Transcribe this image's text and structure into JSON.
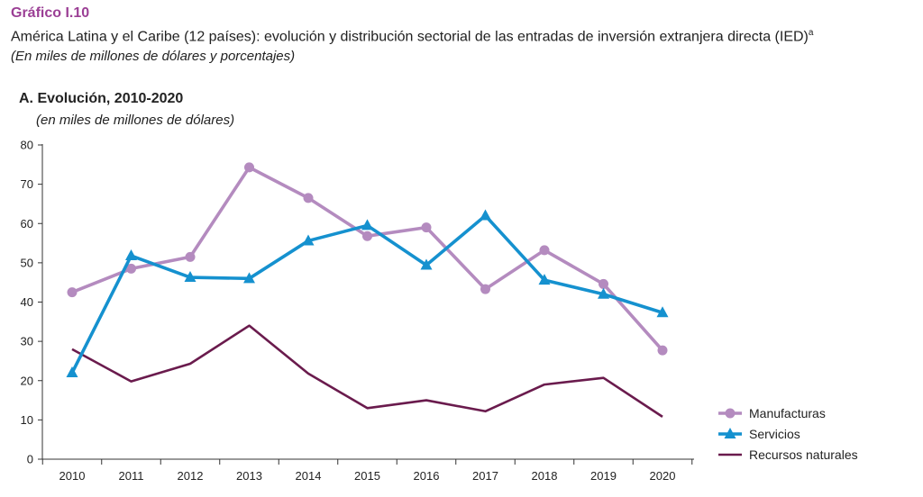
{
  "header": {
    "grafico_label": "Gráfico I.10",
    "subtitle": "América Latina y el Caribe (12 países): evolución y distribución sectorial de las entradas de inversión extranjera directa (IED)",
    "subtitle_sup": "a",
    "units": "(En miles de millones de dólares y porcentajes)"
  },
  "panel": {
    "title": "A. Evolución, 2010-2020",
    "units": "(en miles de millones de dólares)"
  },
  "chart_data": {
    "type": "line",
    "title": "A. Evolución, 2010-2020",
    "ylabel": "(en miles de millones de dólares)",
    "xlabel": "",
    "x": [
      "2010",
      "2011",
      "2012",
      "2013",
      "2014",
      "2015",
      "2016",
      "2017",
      "2018",
      "2019",
      "2020"
    ],
    "ylim": [
      0,
      80
    ],
    "yticks": [
      0,
      10,
      20,
      30,
      40,
      50,
      60,
      70,
      80
    ],
    "grid": false,
    "legend_position": "bottom-right",
    "series": [
      {
        "name": "Manufacturas",
        "color": "#b48bbf",
        "marker": "circle",
        "values": [
          42.5,
          48.5,
          51.5,
          74.3,
          66.5,
          56.8,
          59.0,
          43.3,
          53.2,
          44.6,
          27.7
        ]
      },
      {
        "name": "Servicios",
        "color": "#1591cf",
        "marker": "triangle",
        "values": [
          22.0,
          51.8,
          46.3,
          46.0,
          55.6,
          59.5,
          49.4,
          62.0,
          45.6,
          42.0,
          37.3
        ]
      },
      {
        "name": "Recursos naturales",
        "color": "#6a1b4d",
        "marker": "none",
        "values": [
          28.0,
          19.8,
          24.3,
          34.0,
          21.8,
          13.0,
          15.0,
          12.2,
          19.0,
          20.7,
          10.8
        ]
      }
    ]
  }
}
